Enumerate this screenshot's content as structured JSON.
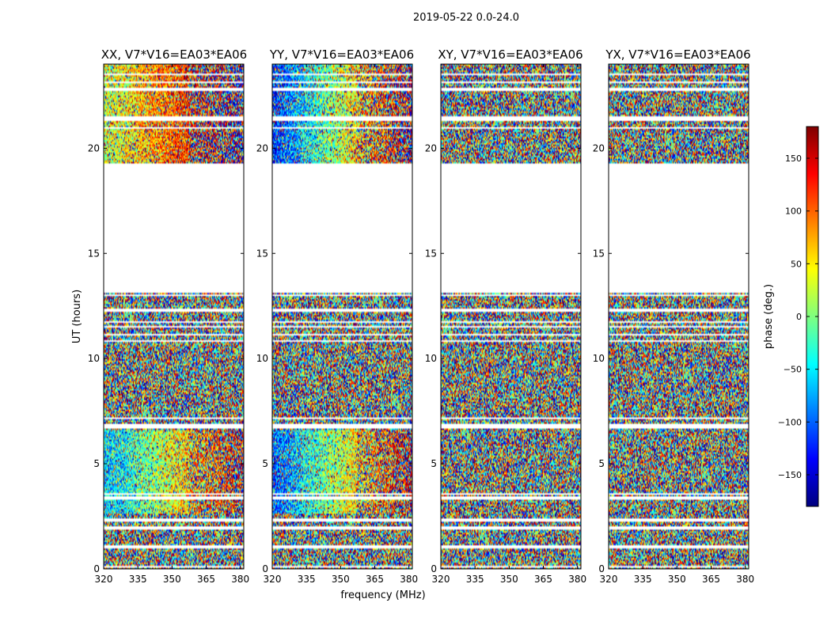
{
  "figure_title": "2019-05-22 0.0-24.0",
  "colorbar": {
    "label": "phase (deg.)",
    "ticks": [
      150,
      100,
      50,
      0,
      -50,
      -100,
      -150
    ],
    "tick_labels": [
      "150",
      "100",
      "50",
      "0",
      "−50",
      "−100",
      "−150"
    ],
    "range": [
      -180,
      180
    ],
    "colormap": "jet",
    "colors": [
      "#00007f",
      "#0000ff",
      "#007fff",
      "#00ffff",
      "#7fff7f",
      "#ffff00",
      "#ff7f00",
      "#ff0000",
      "#7f0000"
    ]
  },
  "chart_data": {
    "type": "heatmap",
    "panels": [
      {
        "title": "XX, V7*V16=EA03*EA06",
        "pol": "XX"
      },
      {
        "title": "YY, V7*V16=EA03*EA06",
        "pol": "YY"
      },
      {
        "title": "XY, V7*V16=EA03*EA06",
        "pol": "XY"
      },
      {
        "title": "YX, V7*V16=EA03*EA06",
        "pol": "YX"
      }
    ],
    "xlabel": "frequency (MHz)",
    "ylabel": "UT (hours)",
    "xlim": [
      320,
      381.5
    ],
    "ylim": [
      0,
      24
    ],
    "xticks": [
      320,
      335,
      350,
      365,
      380
    ],
    "xtick_labels": [
      "320",
      "335",
      "350",
      "365",
      "380"
    ],
    "yticks": [
      0,
      5,
      10,
      15,
      20
    ],
    "ytick_labels": [
      "0",
      "5",
      "10",
      "15",
      "20"
    ],
    "value": "phase (deg.)",
    "zlim": [
      -180,
      180
    ],
    "data_gaps_hours": [
      [
        0.05,
        0.12
      ],
      [
        0.95,
        1.1
      ],
      [
        1.9,
        2.05
      ],
      [
        2.25,
        2.4
      ],
      [
        3.3,
        3.45
      ],
      [
        3.55,
        3.6
      ],
      [
        6.7,
        6.9
      ],
      [
        7.1,
        7.2
      ],
      [
        7.7,
        7.75
      ],
      [
        8.0,
        8.05
      ],
      [
        9.8,
        9.85
      ],
      [
        10.8,
        10.85
      ],
      [
        11.1,
        11.2
      ],
      [
        11.5,
        11.55
      ],
      [
        11.7,
        11.75
      ],
      [
        12.25,
        12.35
      ],
      [
        13.0,
        13.05
      ],
      [
        13.15,
        19.3
      ],
      [
        19.85,
        19.9
      ],
      [
        20.45,
        20.5
      ],
      [
        20.95,
        21.0
      ],
      [
        21.3,
        21.5
      ],
      [
        21.95,
        22.0
      ],
      [
        22.55,
        22.6
      ],
      [
        22.75,
        22.85
      ],
      [
        23.1,
        23.2
      ],
      [
        23.5,
        23.55
      ]
    ],
    "coherent_phase_hours": [
      [
        2.6,
        6.6
      ],
      [
        19.3,
        24.0
      ]
    ]
  }
}
